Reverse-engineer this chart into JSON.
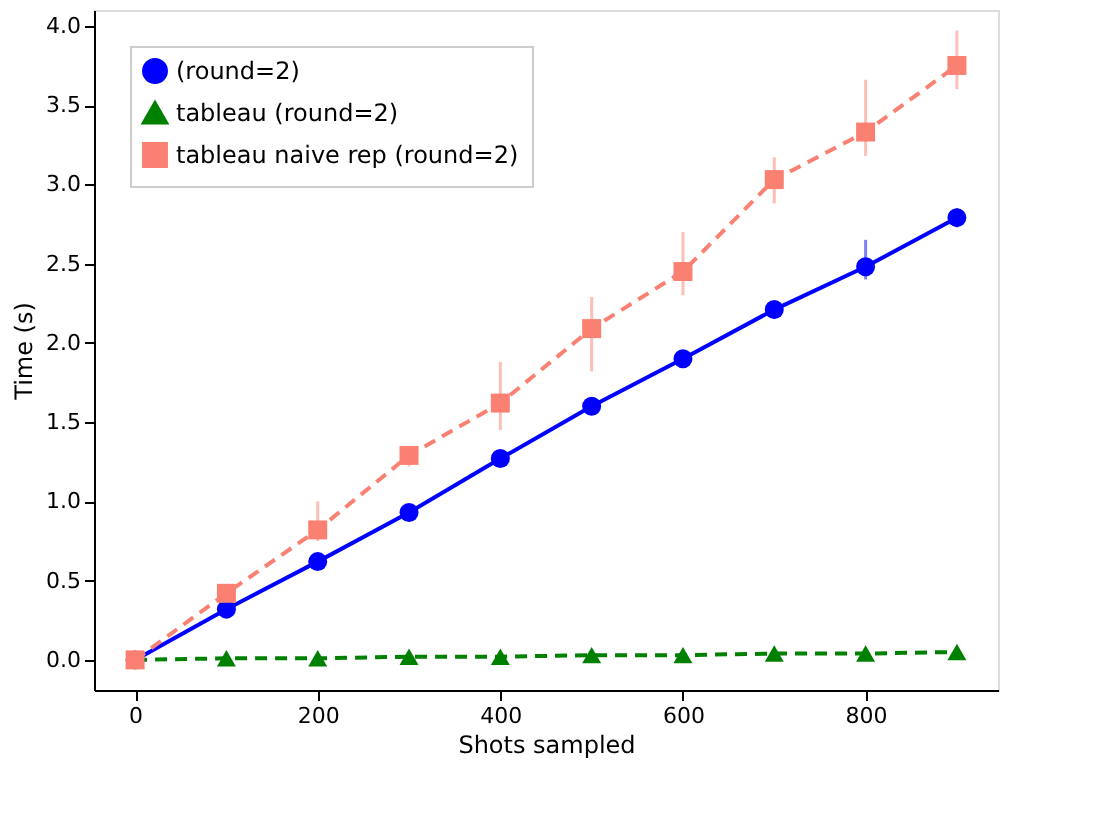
{
  "chart_data": {
    "type": "line",
    "xlabel": "Shots sampled",
    "ylabel": "Time (s)",
    "x": [
      0,
      100,
      200,
      300,
      400,
      500,
      600,
      700,
      800,
      900
    ],
    "series": [
      {
        "name": "(round=2)",
        "color": "#0000ff",
        "marker": "circle",
        "line_style": "solid",
        "values": [
          0,
          0.32,
          0.62,
          0.93,
          1.27,
          1.6,
          1.9,
          2.21,
          2.48,
          2.79
        ],
        "errors": [
          null,
          null,
          null,
          null,
          null,
          null,
          [
            1.85,
            1.95
          ],
          [
            2.15,
            2.26
          ],
          [
            2.4,
            2.65
          ],
          [
            2.73,
            2.85
          ]
        ]
      },
      {
        "name": "tableau (round=2)",
        "color": "#008000",
        "marker": "triangle",
        "line_style": "dashed",
        "values": [
          0,
          0.01,
          0.01,
          0.02,
          0.02,
          0.03,
          0.03,
          0.04,
          0.04,
          0.05
        ]
      },
      {
        "name": "tableau naive rep (round=2)",
        "color": "#fa8072",
        "marker": "square",
        "line_style": "dashed",
        "values": [
          0,
          0.42,
          0.82,
          1.29,
          1.62,
          2.09,
          2.45,
          3.03,
          3.33,
          3.75
        ],
        "errors": [
          null,
          null,
          [
            0.75,
            1.0
          ],
          [
            1.22,
            1.33
          ],
          [
            1.45,
            1.88
          ],
          [
            1.82,
            2.29
          ],
          [
            2.3,
            2.7
          ],
          [
            2.88,
            3.17
          ],
          [
            3.18,
            3.66
          ],
          [
            3.6,
            3.97
          ]
        ]
      }
    ],
    "xlim": [
      -45,
      945
    ],
    "xticks": [
      0,
      200,
      400,
      600,
      800
    ],
    "ylim": [
      -0.19,
      4.1
    ],
    "yticks": [
      {
        "value": 0,
        "label": "0.0"
      },
      0.5,
      {
        "value": 1,
        "label": "1.0"
      },
      1.5,
      {
        "value": 2,
        "label": "2.0"
      },
      2.5,
      {
        "value": 3,
        "label": "3.0"
      },
      3.5,
      {
        "value": 4,
        "label": "4.0"
      }
    ],
    "grid": false,
    "legend": "top left"
  }
}
